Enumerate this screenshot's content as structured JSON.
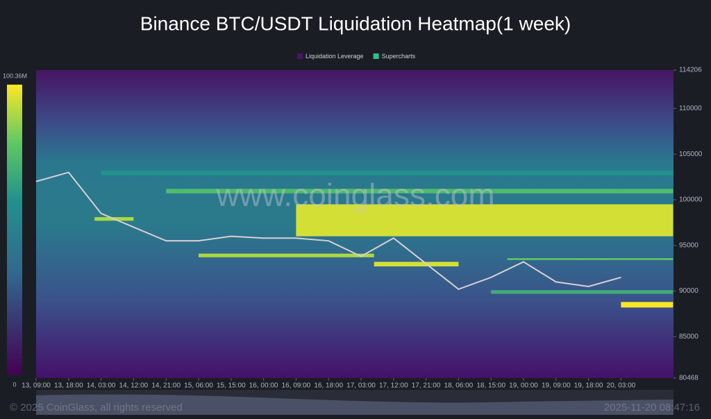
{
  "chart_data": {
    "type": "heatmap",
    "title": "Binance BTC/USDT Liquidation Heatmap(1 week)",
    "legend": [
      {
        "name": "Liquidation Leverage",
        "color": "#4b1566"
      },
      {
        "name": "Supercharts",
        "color": "#2bbf8a"
      }
    ],
    "watermark": "www.coinglass.com",
    "footer": "© 2025 CoinGlass, all rights reserved",
    "timestamp": "2025-11-20 08:47:16",
    "categories": [
      "13, 09:00",
      "13, 18:00",
      "14, 03:00",
      "14, 12:00",
      "14, 21:00",
      "15, 06:00",
      "15, 15:00",
      "16, 00:00",
      "16, 09:00",
      "16, 18:00",
      "17, 03:00",
      "17, 12:00",
      "17, 21:00",
      "18, 06:00",
      "18, 15:00",
      "19, 00:00",
      "19, 09:00",
      "19, 18:00",
      "20, 03:00"
    ],
    "ylim": [
      80468,
      114206
    ],
    "yticks": [
      80468,
      85000,
      90000,
      95000,
      100000,
      105000,
      110000,
      114206
    ],
    "clim": [
      0,
      100.36
    ],
    "cticks": [
      0,
      {
        "value": 100.36,
        "label": "100.36M"
      }
    ],
    "series": [
      {
        "name": "BTC/USDT",
        "color": "#d8d0d4",
        "values": [
          102000,
          103000,
          98500,
          97000,
          95500,
          95500,
          96000,
          95800,
          95800,
          95500,
          93800,
          95800,
          93000,
          90200,
          91500,
          93200,
          91000,
          90500,
          91500
        ]
      }
    ],
    "bands": [
      {
        "low": 96000,
        "high": 99500,
        "start": 8.0,
        "end": 19.6,
        "value": 95
      },
      {
        "low": 100700,
        "high": 101200,
        "start": 4.0,
        "end": 19.6,
        "value": 75
      },
      {
        "low": 102700,
        "high": 103200,
        "start": 2.0,
        "end": 19.6,
        "value": 60
      },
      {
        "low": 97700,
        "high": 98100,
        "start": 1.8,
        "end": 3.0,
        "value": 90
      },
      {
        "low": 93700,
        "high": 94100,
        "start": 5.0,
        "end": 10.4,
        "value": 90
      },
      {
        "low": 92700,
        "high": 93200,
        "start": 10.4,
        "end": 13.0,
        "value": 95
      },
      {
        "low": 93400,
        "high": 93600,
        "start": 14.5,
        "end": 19.6,
        "value": 80
      },
      {
        "low": 89700,
        "high": 90100,
        "start": 14.0,
        "end": 19.6,
        "value": 70
      },
      {
        "low": 88200,
        "high": 88800,
        "start": 18.0,
        "end": 19.6,
        "value": 100
      }
    ]
  }
}
